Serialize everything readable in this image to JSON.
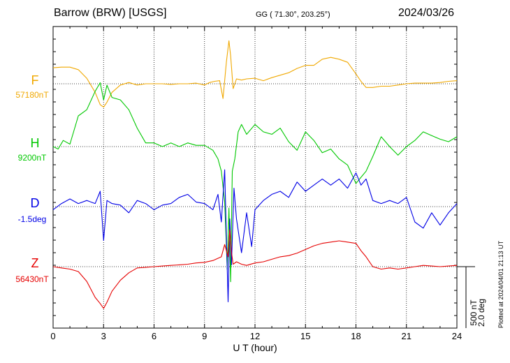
{
  "header": {
    "station": "Barrow (BRW)  [USGS]",
    "coords": "GG ( 71.30°, 203.25°)",
    "date": "2024/03/26"
  },
  "footer": {
    "plotted": "Plotted at 2024/04/01 21:13 UT",
    "scale_nt": "500 nT",
    "scale_deg": "2.0 deg"
  },
  "chart_data": {
    "type": "line",
    "title": "Barrow (BRW)  [USGS]",
    "xlabel": "U T (hour)",
    "xlim": [
      0,
      24
    ],
    "xticks": [
      "0",
      "3",
      "6",
      "9",
      "12",
      "15",
      "18",
      "21",
      "24"
    ],
    "grid": true,
    "series": [
      {
        "name": "F",
        "baseline_label": "57180nT",
        "color": "#f0a800",
        "x": [
          0,
          0.5,
          1,
          1.5,
          2,
          2.5,
          2.8,
          3,
          3.2,
          3.5,
          4,
          4.5,
          5,
          5.5,
          6,
          6.5,
          7,
          7.5,
          8,
          8.5,
          9,
          9.3,
          9.6,
          9.9,
          10.1,
          10.3,
          10.45,
          10.55,
          10.7,
          10.9,
          11.2,
          11.5,
          12,
          12.5,
          13,
          13.5,
          14,
          14.5,
          15,
          15.5,
          16,
          16.5,
          17,
          17.5,
          18,
          18.3,
          18.6,
          19,
          19.5,
          20,
          20.5,
          21,
          21.5,
          22,
          22.5,
          23,
          23.5,
          24
        ],
        "values": [
          130,
          135,
          135,
          115,
          45,
          -70,
          -170,
          -190,
          -150,
          -70,
          -10,
          10,
          -10,
          0,
          0,
          0,
          -5,
          0,
          0,
          5,
          -10,
          10,
          20,
          25,
          -120,
          180,
          350,
          230,
          -40,
          40,
          30,
          40,
          45,
          25,
          50,
          70,
          90,
          125,
          150,
          150,
          200,
          215,
          200,
          175,
          80,
          20,
          -30,
          -30,
          -20,
          -20,
          -10,
          0,
          5,
          5,
          5,
          10,
          20,
          25
        ]
      },
      {
        "name": "H",
        "baseline_label": "9200nT",
        "color": "#00c800",
        "x": [
          0,
          0.3,
          0.6,
          1,
          1.5,
          2,
          2.5,
          2.8,
          3,
          3.2,
          3.5,
          4,
          4.5,
          5,
          5.5,
          6,
          6.5,
          7,
          7.5,
          8,
          8.5,
          9,
          9.5,
          9.8,
          10,
          10.2,
          10.35,
          10.45,
          10.55,
          10.65,
          10.8,
          11,
          11.2,
          11.5,
          12,
          12.5,
          13,
          13.5,
          14,
          14.5,
          15,
          15.5,
          16,
          16.5,
          17,
          17.5,
          18,
          18.3,
          18.6,
          19,
          19.5,
          20,
          20.5,
          21,
          21.5,
          22,
          22.5,
          23,
          23.5,
          24
        ],
        "values": [
          0,
          -20,
          50,
          20,
          250,
          300,
          450,
          520,
          380,
          500,
          400,
          380,
          300,
          150,
          30,
          30,
          0,
          30,
          0,
          30,
          10,
          10,
          -30,
          -100,
          -200,
          -450,
          -1000,
          -500,
          -1100,
          -200,
          -100,
          120,
          180,
          100,
          180,
          120,
          100,
          150,
          40,
          -30,
          120,
          50,
          -50,
          -20,
          -100,
          -150,
          -300,
          -250,
          -200,
          -80,
          80,
          0,
          -70,
          0,
          50,
          120,
          90,
          60,
          40,
          80
        ]
      },
      {
        "name": "D",
        "baseline_label": "-1.5deg",
        "color": "#0000e6",
        "x": [
          0,
          0.5,
          1,
          1.5,
          2,
          2.5,
          2.8,
          3,
          3.2,
          3.5,
          4,
          4.5,
          5,
          5.5,
          6,
          6.5,
          7,
          7.5,
          8,
          8.5,
          9,
          9.5,
          9.8,
          10,
          10.2,
          10.4,
          10.5,
          10.6,
          10.75,
          10.9,
          11.2,
          11.5,
          11.8,
          12,
          12.5,
          13,
          13.5,
          14,
          14.5,
          15,
          15.5,
          16,
          16.5,
          17,
          17.5,
          18,
          18.3,
          18.6,
          19,
          19.5,
          20,
          20.5,
          21,
          21.5,
          22,
          22.5,
          23,
          23.5,
          24
        ],
        "values": [
          -0.1,
          0.1,
          0.25,
          0.1,
          0.2,
          0.1,
          0.5,
          -1.1,
          0.2,
          0.1,
          0.05,
          -0.2,
          0.2,
          0.1,
          -0.1,
          0.05,
          0.1,
          0.3,
          0.4,
          0.15,
          0.1,
          -0.1,
          0.4,
          -0.5,
          1.2,
          -3.1,
          -0.4,
          -1.9,
          0.6,
          -0.4,
          -1.5,
          -0.2,
          -1.3,
          -0.1,
          0.2,
          0.4,
          0.5,
          0.3,
          0.8,
          0.5,
          0.7,
          0.9,
          0.7,
          0.9,
          0.6,
          1.1,
          0.7,
          0.9,
          0.2,
          0.1,
          0.2,
          0.1,
          0.3,
          -0.5,
          -0.7,
          -0.2,
          -0.6,
          -0.2,
          0.1
        ]
      },
      {
        "name": "Z",
        "baseline_label": "56430nT",
        "color": "#e60000",
        "x": [
          0,
          0.5,
          1,
          1.5,
          2,
          2.5,
          2.8,
          3,
          3.2,
          3.5,
          4,
          4.5,
          5,
          5.5,
          6,
          6.5,
          7,
          7.5,
          8,
          8.5,
          9,
          9.5,
          10,
          10.2,
          10.4,
          10.5,
          10.6,
          10.7,
          10.9,
          11.2,
          11.5,
          12,
          12.5,
          13,
          13.5,
          14,
          14.5,
          15,
          15.5,
          16,
          16.5,
          17,
          17.5,
          18,
          18.3,
          18.6,
          19,
          19.5,
          20,
          20.5,
          21,
          21.5,
          22,
          22.5,
          23,
          23.5,
          24
        ],
        "values": [
          0,
          -10,
          -20,
          -40,
          -120,
          -250,
          -300,
          -340,
          -290,
          -200,
          -110,
          -50,
          -10,
          -5,
          0,
          5,
          10,
          15,
          20,
          30,
          35,
          50,
          80,
          180,
          80,
          300,
          120,
          20,
          40,
          20,
          10,
          30,
          40,
          60,
          80,
          90,
          110,
          140,
          170,
          190,
          200,
          210,
          200,
          190,
          130,
          80,
          0,
          -20,
          -10,
          -20,
          -10,
          0,
          10,
          5,
          0,
          5,
          10
        ]
      }
    ],
    "scale_bar": {
      "nT": 500,
      "deg": 2.0
    }
  }
}
